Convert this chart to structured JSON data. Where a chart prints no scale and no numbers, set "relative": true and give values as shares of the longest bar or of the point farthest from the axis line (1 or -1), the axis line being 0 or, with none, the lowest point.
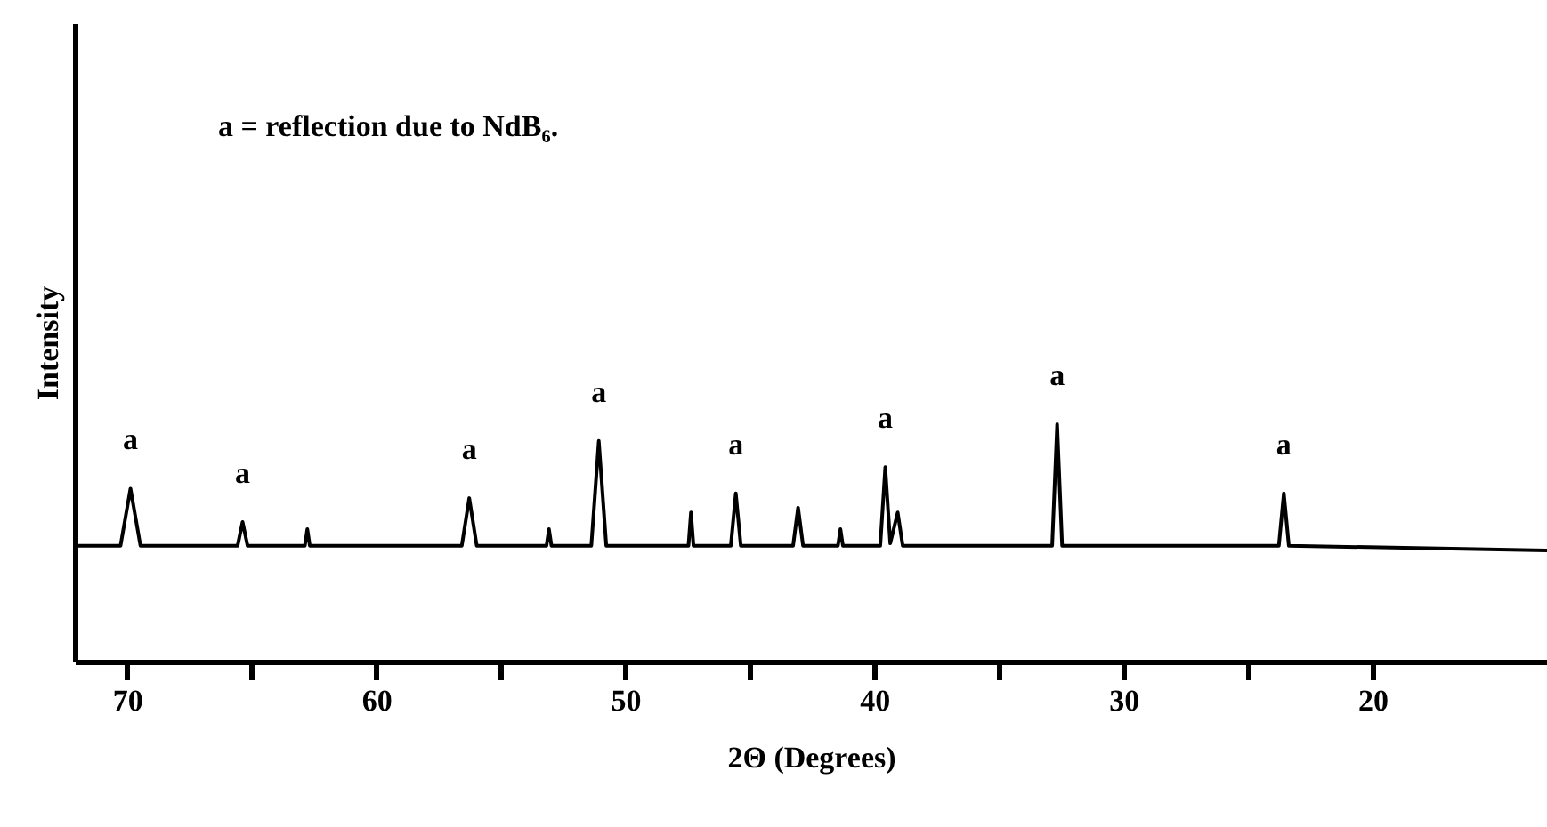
{
  "chart_data": {
    "type": "line",
    "relative": true,
    "xlabel": "2Θ (Degrees)",
    "ylabel": "Intensity",
    "xlim": [
      72.1,
      13
    ],
    "xticks": [
      70,
      {
        "value": 65,
        "label": null
      },
      60,
      {
        "value": 55,
        "label": null
      },
      50,
      {
        "value": 45,
        "label": null
      },
      40,
      {
        "value": 35,
        "label": null
      },
      30,
      {
        "value": 25,
        "label": null
      },
      20
    ],
    "grid": false,
    "marker": "none",
    "line_style": "solid",
    "series": [
      {
        "color": "#000000",
        "x": [
          72.0,
          70.3,
          69.9,
          69.5,
          65.6,
          65.4,
          65.2,
          62.9,
          62.8,
          62.7,
          56.6,
          56.3,
          56.0,
          53.2,
          53.1,
          53.0,
          51.4,
          51.1,
          50.8,
          47.5,
          47.4,
          47.3,
          45.8,
          45.6,
          45.4,
          43.3,
          43.1,
          42.9,
          41.5,
          41.4,
          41.3,
          39.8,
          39.6,
          39.4,
          39.1,
          38.9,
          32.9,
          32.7,
          32.5,
          23.8,
          23.6,
          23.4,
          13.0
        ],
        "values": [
          0.49,
          0.49,
          0.73,
          0.49,
          0.49,
          0.59,
          0.49,
          0.49,
          0.56,
          0.49,
          0.49,
          0.69,
          0.49,
          0.49,
          0.56,
          0.49,
          0.49,
          0.93,
          0.49,
          0.49,
          0.63,
          0.49,
          0.49,
          0.71,
          0.49,
          0.49,
          0.65,
          0.49,
          0.49,
          0.56,
          0.49,
          0.49,
          0.82,
          0.5,
          0.63,
          0.49,
          0.49,
          1,
          0.49,
          0.49,
          0.71,
          0.49,
          0.47
        ]
      }
    ],
    "annotations": [
      "a = reflection due to NdB₆.",
      {
        "text": "a",
        "x": 69.9,
        "y": 0.73
      },
      {
        "text": "a",
        "x": 65.4,
        "y": 0.59
      },
      {
        "text": "a",
        "x": 56.3,
        "y": 0.69
      },
      {
        "text": "a",
        "x": 51.1,
        "y": 0.93
      },
      {
        "text": "a",
        "x": 45.6,
        "y": 0.71
      },
      {
        "text": "a",
        "x": 39.6,
        "y": 0.82
      },
      {
        "text": "a",
        "x": 32.7,
        "y": 1
      },
      {
        "text": "a",
        "x": 23.6,
        "y": 0.71
      }
    ]
  }
}
